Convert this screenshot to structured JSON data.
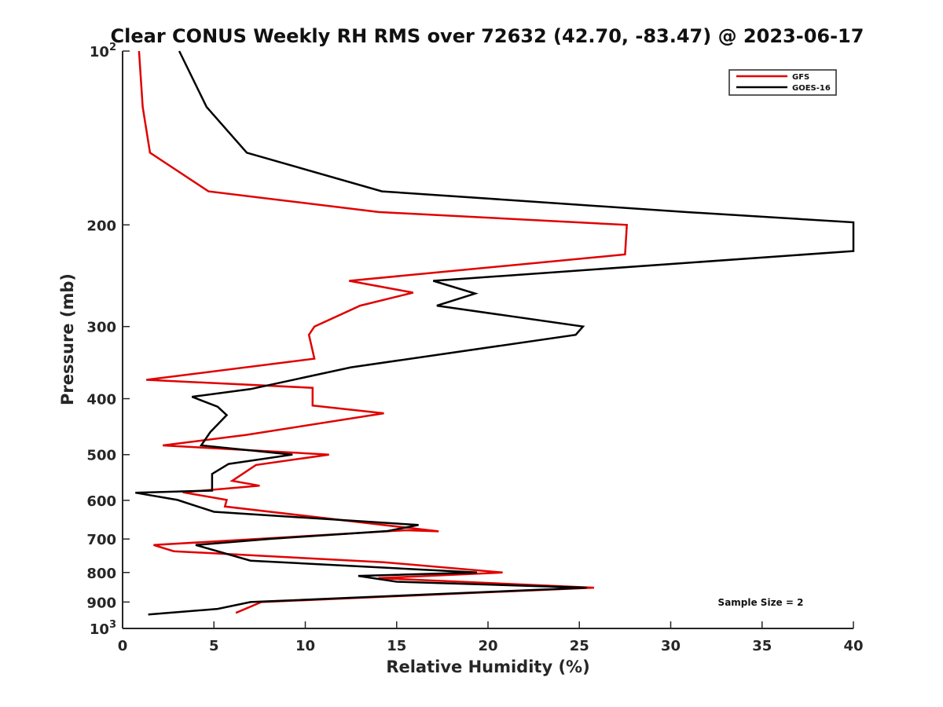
{
  "chart_data": {
    "type": "line",
    "title": "Clear CONUS Weekly RH RMS over 72632 (42.70, -83.47) @ 2023-06-17",
    "xlabel": "Relative Humidity (%)",
    "ylabel": "Pressure (mb)",
    "xlim": [
      0,
      40
    ],
    "ylim": [
      100,
      1000
    ],
    "y_scale": "log",
    "y_reversed": true,
    "grid": false,
    "legend_position": "top-right",
    "annotation": "Sample Size = 2",
    "x_ticks": [
      "0",
      "5",
      "10",
      "15",
      "20",
      "25",
      "30",
      "35",
      "40"
    ],
    "y_ticks": [
      {
        "value": 100,
        "base": "10",
        "exp": "2"
      },
      {
        "value": 200,
        "label": "200"
      },
      {
        "value": 300,
        "label": "300"
      },
      {
        "value": 400,
        "label": "400"
      },
      {
        "value": 500,
        "label": "500"
      },
      {
        "value": 600,
        "label": "600"
      },
      {
        "value": 700,
        "label": "700"
      },
      {
        "value": 800,
        "label": "800"
      },
      {
        "value": 900,
        "label": "900"
      },
      {
        "value": 1000,
        "base": "10",
        "exp": "3"
      }
    ],
    "series": [
      {
        "name": "GFS",
        "color": "#e00000",
        "points": [
          [
            0.9,
            100
          ],
          [
            1.1,
            125
          ],
          [
            1.5,
            150
          ],
          [
            4.7,
            175
          ],
          [
            14,
            190
          ],
          [
            27.6,
            200
          ],
          [
            27.5,
            225
          ],
          [
            12.4,
            250
          ],
          [
            15.9,
            262
          ],
          [
            13,
            276
          ],
          [
            10.5,
            300
          ],
          [
            10.2,
            310
          ],
          [
            10.5,
            341
          ],
          [
            1.3,
            371
          ],
          [
            10.4,
            383
          ],
          [
            10.4,
            411
          ],
          [
            14.3,
            424
          ],
          [
            6.8,
            462
          ],
          [
            2.2,
            482
          ],
          [
            11.3,
            500
          ],
          [
            7.3,
            521
          ],
          [
            6,
            555
          ],
          [
            7.5,
            566
          ],
          [
            3.3,
            581
          ],
          [
            5.7,
            599
          ],
          [
            5.6,
            615
          ],
          [
            17.3,
            679
          ],
          [
            15.5,
            676
          ],
          [
            1.7,
            717
          ],
          [
            2.8,
            735
          ],
          [
            14.3,
            768
          ],
          [
            20.8,
            800
          ],
          [
            14,
            818
          ],
          [
            25.8,
            850
          ],
          [
            7.6,
            900
          ],
          [
            6.2,
            940
          ]
        ]
      },
      {
        "name": "GOES-16",
        "color": "#000000",
        "points": [
          [
            3.1,
            100
          ],
          [
            4.6,
            125
          ],
          [
            6.8,
            150
          ],
          [
            14.2,
            175
          ],
          [
            30.8,
            190
          ],
          [
            40,
            198
          ],
          [
            40,
            222
          ],
          [
            17,
            250
          ],
          [
            19.3,
            263
          ],
          [
            17.2,
            276
          ],
          [
            25.2,
            300
          ],
          [
            24.8,
            310
          ],
          [
            12.5,
            353
          ],
          [
            7,
            385
          ],
          [
            3.8,
            397
          ],
          [
            5.2,
            413
          ],
          [
            5.7,
            427
          ],
          [
            4.8,
            457
          ],
          [
            4.3,
            482
          ],
          [
            9.3,
            500
          ],
          [
            5.8,
            519
          ],
          [
            4.9,
            540
          ],
          [
            4.9,
            577
          ],
          [
            0.7,
            582
          ],
          [
            3,
            599
          ],
          [
            5,
            628
          ],
          [
            16.2,
            662
          ],
          [
            14.5,
            678
          ],
          [
            8,
            700
          ],
          [
            4,
            717
          ],
          [
            7,
            763
          ],
          [
            19.4,
            800
          ],
          [
            12.9,
            811
          ],
          [
            15,
            830
          ],
          [
            25.4,
            850
          ],
          [
            7,
            900
          ],
          [
            5.2,
            925
          ],
          [
            1.4,
            946
          ]
        ]
      }
    ]
  }
}
